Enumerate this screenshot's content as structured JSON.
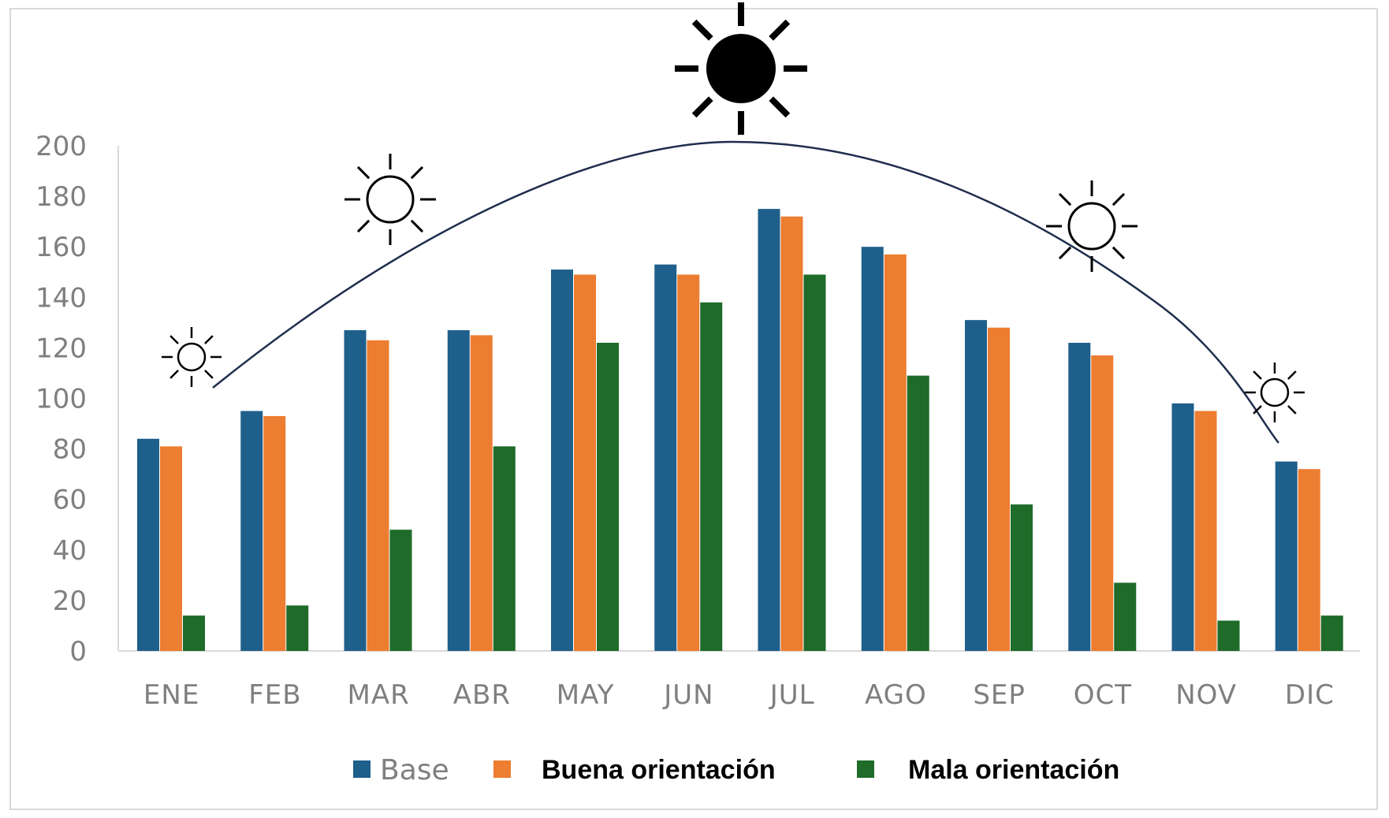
{
  "colors": {
    "base": "#1f5f8b",
    "buena": "#ed7d31",
    "mala": "#1e6b2a",
    "axis_text": "#7f7f7f",
    "curve": "#1f2d4d"
  },
  "icons": [
    "sun-small-left-icon",
    "sun-medium-left-icon",
    "sun-large-top-icon",
    "sun-medium-right-icon",
    "sun-small-right-icon"
  ],
  "chart_data": {
    "type": "bar",
    "title": "",
    "xlabel": "",
    "ylabel": "",
    "ylim": [
      0,
      200
    ],
    "yticks": [
      0,
      20,
      40,
      60,
      80,
      100,
      120,
      140,
      160,
      180,
      200
    ],
    "grid": false,
    "legend_position": "bottom",
    "categories": [
      "ENE",
      "FEB",
      "MAR",
      "ABR",
      "MAY",
      "JUN",
      "JUL",
      "AGO",
      "SEP",
      "OCT",
      "NOV",
      "DIC"
    ],
    "series": [
      {
        "name": "Base",
        "values": [
          84,
          95,
          127,
          127,
          151,
          153,
          175,
          160,
          131,
          122,
          98,
          75
        ]
      },
      {
        "name": "Buena orientación",
        "values": [
          81,
          93,
          123,
          125,
          149,
          149,
          172,
          157,
          128,
          117,
          95,
          72
        ]
      },
      {
        "name": "Mala orientación",
        "values": [
          14,
          18,
          48,
          81,
          122,
          138,
          149,
          109,
          58,
          27,
          12,
          14
        ]
      }
    ]
  }
}
